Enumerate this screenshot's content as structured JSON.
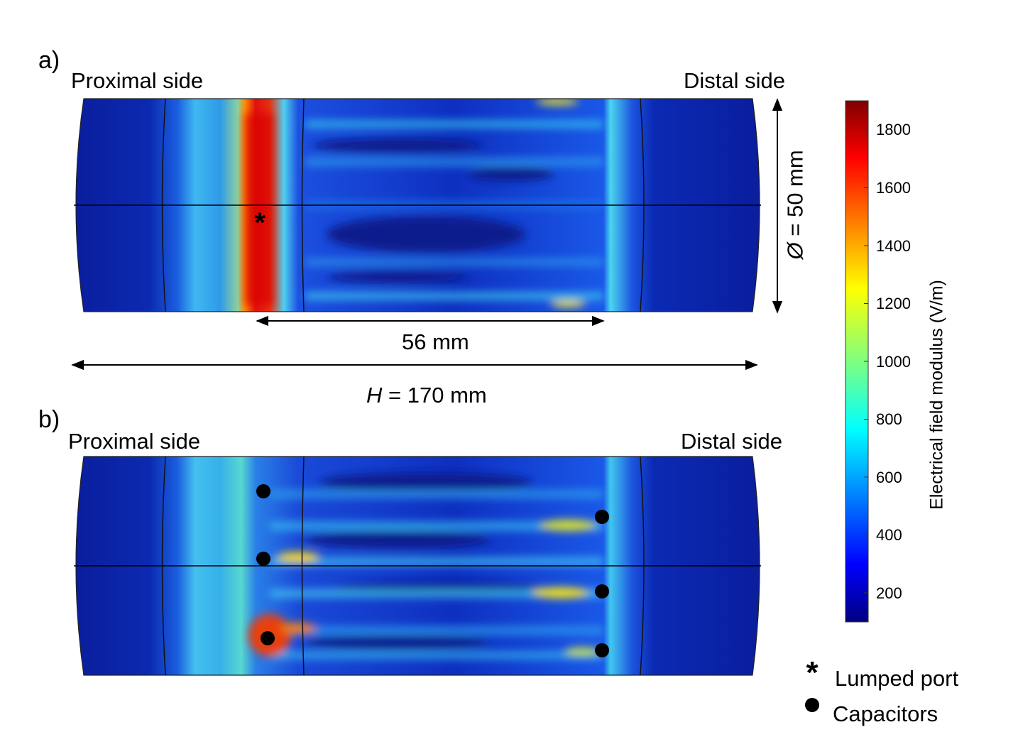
{
  "panels": [
    {
      "letter": "a)",
      "left_label": "Proximal side",
      "right_label": "Distal side",
      "marker": "lumped-port"
    },
    {
      "letter": "b)",
      "left_label": "Proximal side",
      "right_label": "Distal side",
      "marker": "capacitors",
      "capacitor_count": 6
    }
  ],
  "dimensions": {
    "diameter": "= 50 mm",
    "diameter_symbol": "Ø",
    "inner_length": "56 mm",
    "height_symbol": "H",
    "height": "= 170  mm"
  },
  "colorbar": {
    "title": "Electrical field modulus (V/m)",
    "ticks": [
      "1800",
      "1600",
      "1400",
      "1200",
      "1000",
      "800",
      "600",
      "400",
      "200"
    ],
    "colormap": "jet",
    "range": [
      100,
      1900
    ]
  },
  "legend": [
    {
      "symbol": "*",
      "icon": "asterisk-icon",
      "label": "Lumped port"
    },
    {
      "symbol": "●",
      "icon": "dot-icon",
      "label": "Capacitors"
    }
  ]
}
